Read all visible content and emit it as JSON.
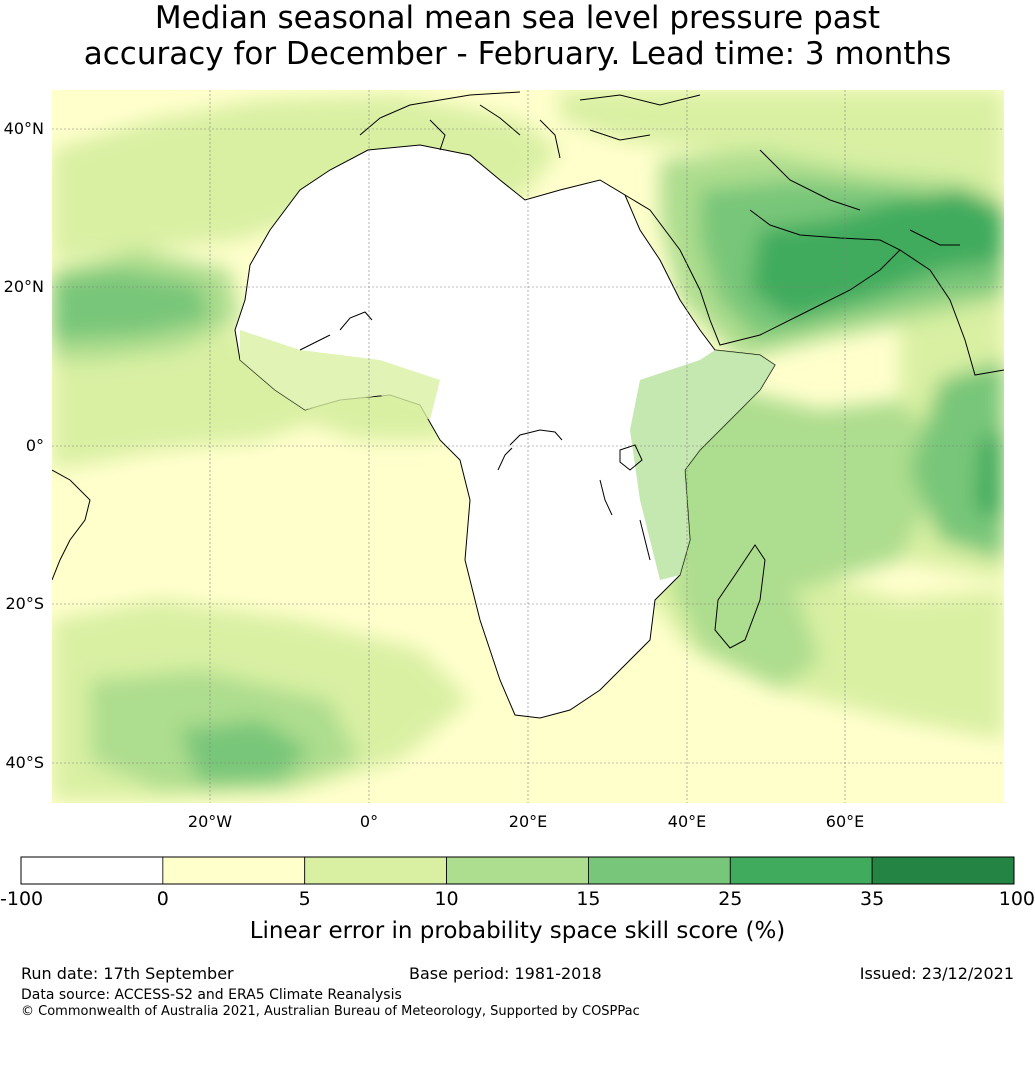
{
  "title": {
    "line1": "Median seasonal mean sea level pressure past",
    "line2": "accuracy for December - February. Lead time: 3 months"
  },
  "map": {
    "lat_labels": [
      "40°N",
      "20°N",
      "0°",
      "20°S",
      "40°S"
    ],
    "lon_labels": [
      "20°W",
      "0°",
      "20°E",
      "40°E",
      "60°E"
    ]
  },
  "legend": {
    "ticks": [
      "-100",
      "0",
      "5",
      "10",
      "15",
      "25",
      "35",
      "100"
    ],
    "colors": [
      "#ffffff",
      "#ffffcc",
      "#d9f0a3",
      "#addd8e",
      "#78c679",
      "#41ab5d",
      "#238443"
    ],
    "title": "Linear error in probability space skill score (%)"
  },
  "footer": {
    "run_date": "Run date: 17th September",
    "base_period": "Base period: 1981-2018",
    "issued": "Issued: 23/12/2021",
    "data_source": "Data source: ACCESS-S2 and ERA5 Climate Reanalysis",
    "copyright": "© Commonwealth of Australia 2021, Australian Bureau of Meteorology, Supported by COSPPac"
  }
}
